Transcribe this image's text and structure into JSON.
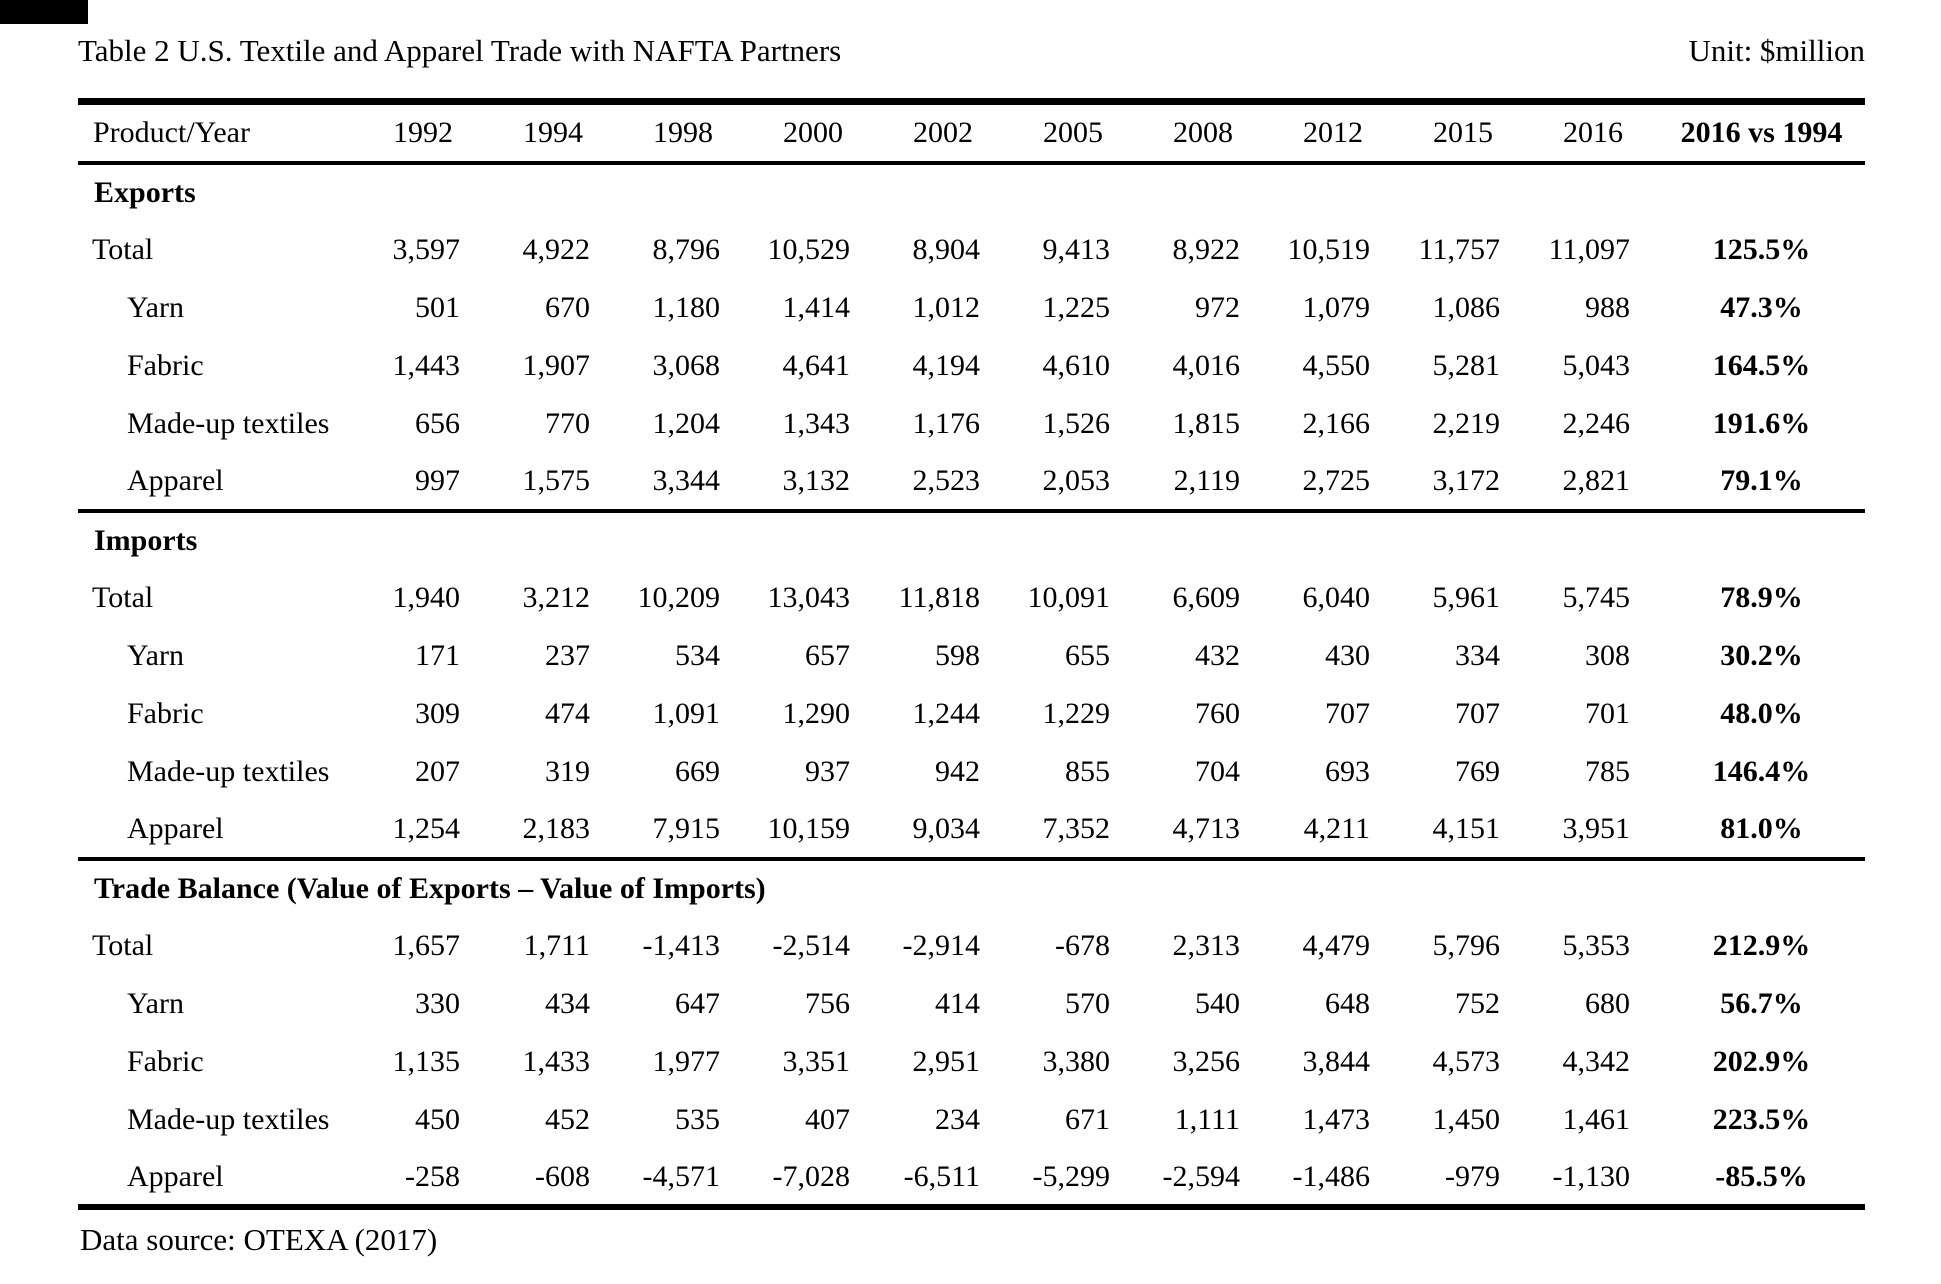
{
  "page": {
    "title": "Table 2 U.S. Textile and Apparel Trade with NAFTA Partners",
    "unit_label": "Unit: $million",
    "data_source": "Data source: OTEXA (2017)"
  },
  "table": {
    "header": {
      "product_year": "Product/Year",
      "years": [
        "1992",
        "1994",
        "1998",
        "2000",
        "2002",
        "2005",
        "2008",
        "2012",
        "2015",
        "2016"
      ],
      "comparison": "2016 vs 1994"
    },
    "sections": [
      {
        "title": "Exports",
        "rows": [
          {
            "label": "Total",
            "indent": false,
            "values": [
              "3,597",
              "4,922",
              "8,796",
              "10,529",
              "8,904",
              "9,413",
              "8,922",
              "10,519",
              "11,757",
              "11,097"
            ],
            "change": "125.5%"
          },
          {
            "label": "Yarn",
            "indent": true,
            "values": [
              "501",
              "670",
              "1,180",
              "1,414",
              "1,012",
              "1,225",
              "972",
              "1,079",
              "1,086",
              "988"
            ],
            "change": "47.3%"
          },
          {
            "label": "Fabric",
            "indent": true,
            "values": [
              "1,443",
              "1,907",
              "3,068",
              "4,641",
              "4,194",
              "4,610",
              "4,016",
              "4,550",
              "5,281",
              "5,043"
            ],
            "change": "164.5%"
          },
          {
            "label": "Made-up textiles",
            "indent": true,
            "values": [
              "656",
              "770",
              "1,204",
              "1,343",
              "1,176",
              "1,526",
              "1,815",
              "2,166",
              "2,219",
              "2,246"
            ],
            "change": "191.6%"
          },
          {
            "label": "Apparel",
            "indent": true,
            "values": [
              "997",
              "1,575",
              "3,344",
              "3,132",
              "2,523",
              "2,053",
              "2,119",
              "2,725",
              "3,172",
              "2,821"
            ],
            "change": "79.1%"
          }
        ]
      },
      {
        "title": "Imports",
        "rows": [
          {
            "label": "Total",
            "indent": false,
            "values": [
              "1,940",
              "3,212",
              "10,209",
              "13,043",
              "11,818",
              "10,091",
              "6,609",
              "6,040",
              "5,961",
              "5,745"
            ],
            "change": "78.9%"
          },
          {
            "label": "Yarn",
            "indent": true,
            "values": [
              "171",
              "237",
              "534",
              "657",
              "598",
              "655",
              "432",
              "430",
              "334",
              "308"
            ],
            "change": "30.2%"
          },
          {
            "label": "Fabric",
            "indent": true,
            "values": [
              "309",
              "474",
              "1,091",
              "1,290",
              "1,244",
              "1,229",
              "760",
              "707",
              "707",
              "701"
            ],
            "change": "48.0%"
          },
          {
            "label": "Made-up textiles",
            "indent": true,
            "values": [
              "207",
              "319",
              "669",
              "937",
              "942",
              "855",
              "704",
              "693",
              "769",
              "785"
            ],
            "change": "146.4%"
          },
          {
            "label": "Apparel",
            "indent": true,
            "values": [
              "1,254",
              "2,183",
              "7,915",
              "10,159",
              "9,034",
              "7,352",
              "4,713",
              "4,211",
              "4,151",
              "3,951"
            ],
            "change": "81.0%"
          }
        ]
      },
      {
        "title": "Trade Balance (Value of Exports – Value of Imports)",
        "rows": [
          {
            "label": "Total",
            "indent": false,
            "values": [
              "1,657",
              "1,711",
              "-1,413",
              "-2,514",
              "-2,914",
              "-678",
              "2,313",
              "4,479",
              "5,796",
              "5,353"
            ],
            "change": "212.9%"
          },
          {
            "label": "Yarn",
            "indent": true,
            "values": [
              "330",
              "434",
              "647",
              "756",
              "414",
              "570",
              "540",
              "648",
              "752",
              "680"
            ],
            "change": "56.7%"
          },
          {
            "label": "Fabric",
            "indent": true,
            "values": [
              "1,135",
              "1,433",
              "1,977",
              "3,351",
              "2,951",
              "3,380",
              "3,256",
              "3,844",
              "4,573",
              "4,342"
            ],
            "change": "202.9%"
          },
          {
            "label": "Made-up textiles",
            "indent": true,
            "values": [
              "450",
              "452",
              "535",
              "407",
              "234",
              "671",
              "1,111",
              "1,473",
              "1,450",
              "1,461"
            ],
            "change": "223.5%"
          },
          {
            "label": "Apparel",
            "indent": true,
            "values": [
              "-258",
              "-608",
              "-4,571",
              "-7,028",
              "-6,511",
              "-5,299",
              "-2,594",
              "-1,486",
              "-979",
              "-1,130"
            ],
            "change": "-85.5%"
          }
        ]
      }
    ]
  }
}
